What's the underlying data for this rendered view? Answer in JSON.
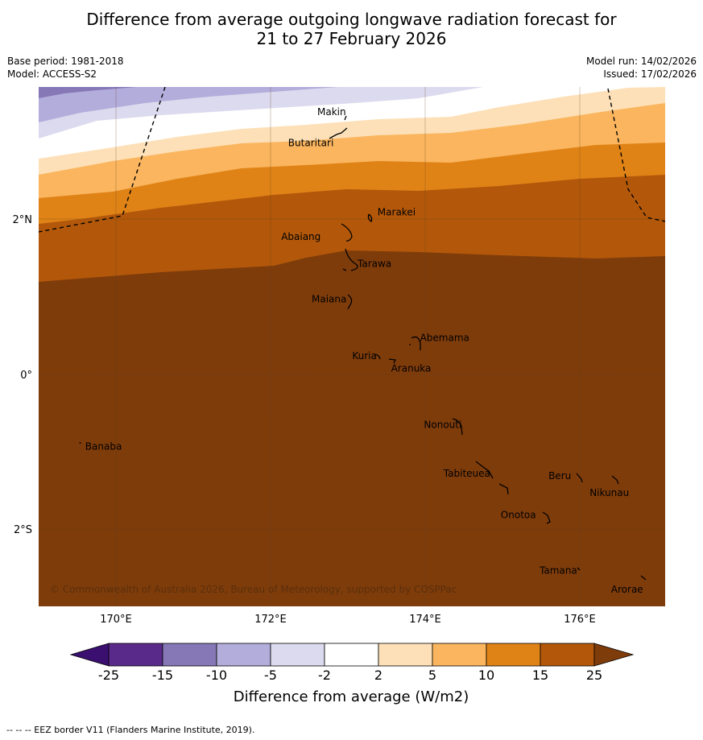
{
  "title": {
    "line1": "Difference from average outgoing longwave radiation forecast for",
    "line2": "21 to 27 February 2026"
  },
  "meta": {
    "base_period": "Base period: 1981-2018",
    "model": "Model: ACCESS-S2",
    "model_run": "Model run: 14/02/2026",
    "issued": "Issued: 17/02/2026"
  },
  "map": {
    "copyright": "© Commonwealth of Australia 2026, Bureau of Meteorology, supported by COSPPac",
    "lon_labels": [
      "170°E",
      "172°E",
      "174°E",
      "176°E"
    ],
    "lat_labels": [
      "2°N",
      "0°",
      "2°S"
    ],
    "places": [
      {
        "name": "Makin",
        "lon": 173.0,
        "lat": 3.4
      },
      {
        "name": "Butaritari",
        "lon": 172.8,
        "lat": 3.05
      },
      {
        "name": "Marakei",
        "lon": 173.3,
        "lat": 2.0
      },
      {
        "name": "Abaiang",
        "lon": 172.95,
        "lat": 1.84
      },
      {
        "name": "Tarawa",
        "lon": 173.0,
        "lat": 1.45
      },
      {
        "name": "Maiana",
        "lon": 173.0,
        "lat": 0.93
      },
      {
        "name": "Abemama",
        "lon": 173.85,
        "lat": 0.43
      },
      {
        "name": "Kuria",
        "lon": 173.42,
        "lat": 0.23
      },
      {
        "name": "Aranuka",
        "lon": 173.6,
        "lat": 0.17
      },
      {
        "name": "Nonouti",
        "lon": 174.4,
        "lat": -0.65
      },
      {
        "name": "Banaba",
        "lon": 169.55,
        "lat": -0.87
      },
      {
        "name": "Tabiteuea",
        "lon": 174.8,
        "lat": -1.3
      },
      {
        "name": "Beru",
        "lon": 175.98,
        "lat": -1.33
      },
      {
        "name": "Nikunau",
        "lon": 176.45,
        "lat": -1.36
      },
      {
        "name": "Onotoa",
        "lon": 175.55,
        "lat": -1.8
      },
      {
        "name": "Tamana",
        "lon": 175.98,
        "lat": -2.5
      },
      {
        "name": "Arorae",
        "lon": 176.8,
        "lat": -2.65
      }
    ]
  },
  "colorbar": {
    "ticks": [
      "-25",
      "-15",
      "-10",
      "-5",
      "-2",
      "2",
      "5",
      "10",
      "15",
      "25"
    ],
    "colors": [
      "#3b0f70",
      "#5a2a8a",
      "#8677b6",
      "#b3addb",
      "#dcdaee",
      "#ffffff",
      "#fde0b7",
      "#fab55e",
      "#e08317",
      "#b3580a",
      "#7f3c0b"
    ],
    "label": "Difference from average (W/m2)"
  },
  "footer": "--  --  -- EEZ border V11 (Flanders Marine Institute, 2019)."
}
